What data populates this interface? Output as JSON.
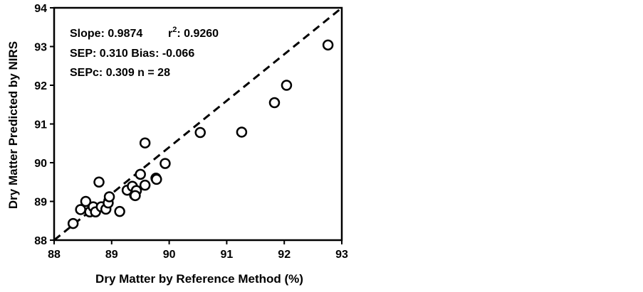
{
  "chart_data": {
    "type": "scatter",
    "title": "",
    "xlabel": "Dry Matter by Reference Method  (%)",
    "ylabel": "Dry Matter Predicted by NIRS",
    "xlim": [
      88,
      93
    ],
    "ylim": [
      88,
      94
    ],
    "x_ticks": [
      "88",
      "89",
      "90",
      "91",
      "92",
      "93"
    ],
    "y_ticks": [
      "88",
      "89",
      "90",
      "91",
      "92",
      "93",
      "94"
    ],
    "grid": false,
    "reference_line": {
      "style": "dashed",
      "from": [
        88,
        88
      ],
      "to": [
        93,
        94
      ]
    },
    "annotations": {
      "line1_a": "Slope: 0.9874",
      "line1_b_pre": "r",
      "line1_b_sup": "2",
      "line1_b_post": ": 0.9260",
      "line2": "SEP: 0.310  Bias: -0.066",
      "line3": "SEPc: 0.309  n = 28"
    },
    "series": [
      {
        "marker": "open-circle",
        "points": [
          [
            88.33,
            88.43
          ],
          [
            88.46,
            88.79
          ],
          [
            88.55,
            89.0
          ],
          [
            88.62,
            88.73
          ],
          [
            88.68,
            88.86
          ],
          [
            88.72,
            88.73
          ],
          [
            88.78,
            89.5
          ],
          [
            88.82,
            88.86
          ],
          [
            88.9,
            88.8
          ],
          [
            88.94,
            88.96
          ],
          [
            88.96,
            89.12
          ],
          [
            89.14,
            88.74
          ],
          [
            89.27,
            89.29
          ],
          [
            89.36,
            89.39
          ],
          [
            89.4,
            89.16
          ],
          [
            89.43,
            89.28
          ],
          [
            89.5,
            89.7
          ],
          [
            89.58,
            89.42
          ],
          [
            89.58,
            90.51
          ],
          [
            89.77,
            89.6
          ],
          [
            89.78,
            89.57
          ],
          [
            89.93,
            89.98
          ],
          [
            90.54,
            90.78
          ],
          [
            91.26,
            90.79
          ],
          [
            91.83,
            91.55
          ],
          [
            92.04,
            92.0
          ],
          [
            92.76,
            93.04
          ],
          [
            89.41,
            89.15
          ]
        ]
      }
    ]
  }
}
